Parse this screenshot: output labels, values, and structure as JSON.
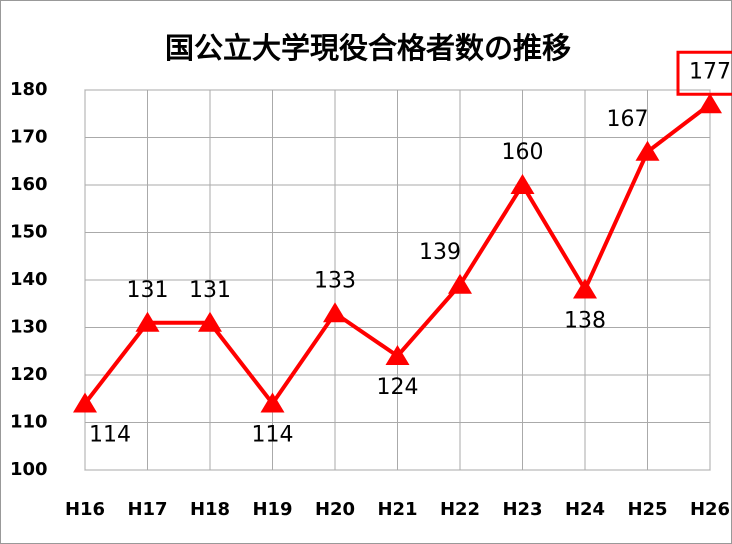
{
  "chart_data": {
    "type": "line",
    "title": "国公立大学現役合格者数の推移",
    "categories": [
      "H16",
      "H17",
      "H18",
      "H19",
      "H20",
      "H21",
      "H22",
      "H23",
      "H24",
      "H25",
      "H26"
    ],
    "series": [
      {
        "name": "国公立大学現役合格者数",
        "color": "#ff0000",
        "values": [
          114,
          131,
          131,
          114,
          133,
          124,
          139,
          160,
          138,
          167,
          177
        ]
      }
    ],
    "ylim": [
      100,
      180
    ],
    "yticks": [
      100,
      110,
      120,
      130,
      140,
      150,
      160,
      170,
      180
    ],
    "grid": true
  }
}
